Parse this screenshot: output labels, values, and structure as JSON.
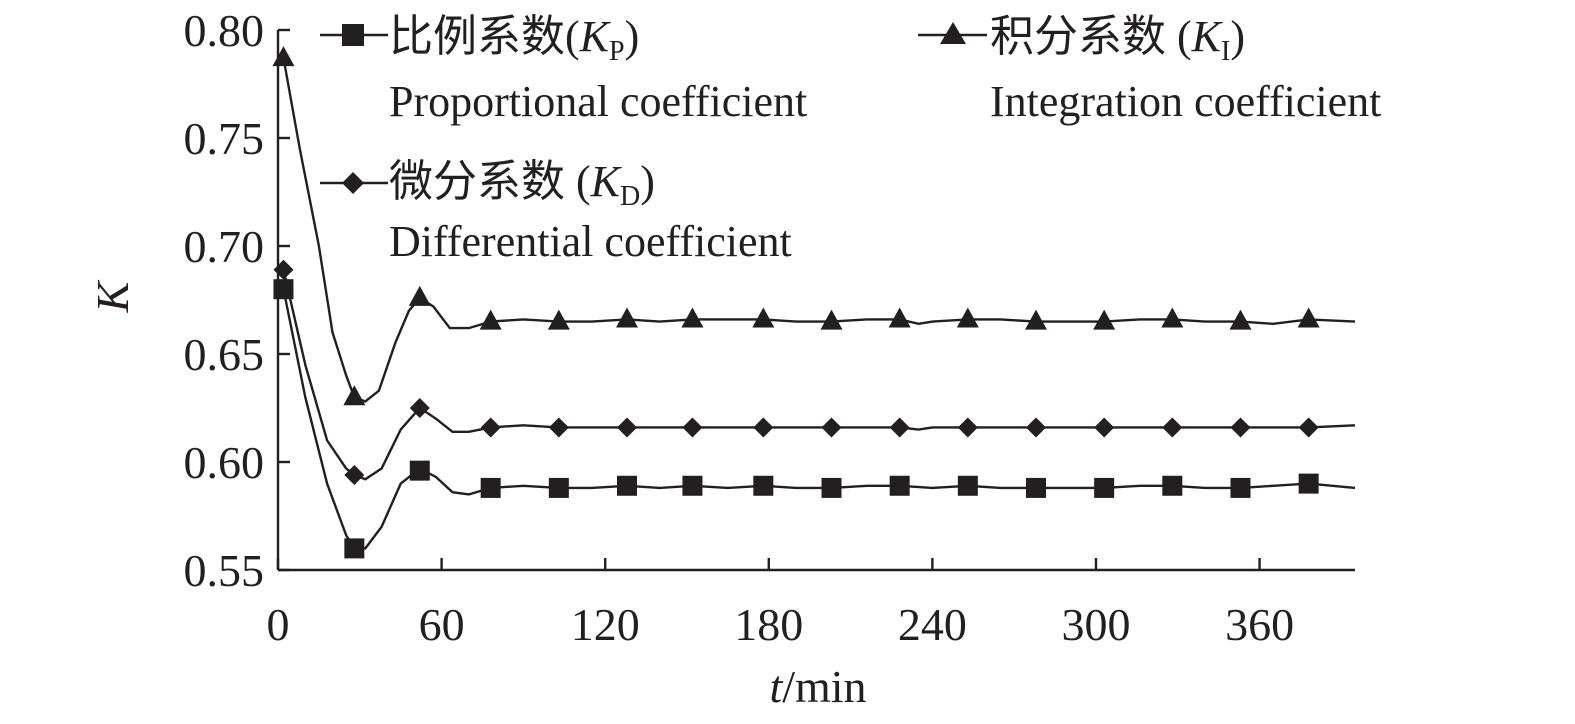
{
  "chart_data": {
    "type": "line",
    "xlabel": {
      "var": "t",
      "unit": "/min"
    },
    "ylabel": "K",
    "xlim": [
      0,
      395
    ],
    "ylim": [
      0.55,
      0.8
    ],
    "x_ticks": [
      0,
      60,
      120,
      180,
      240,
      300,
      360
    ],
    "y_ticks": [
      0.55,
      0.6,
      0.65,
      0.7,
      0.75,
      0.8
    ],
    "y_tick_labels": [
      "0.55",
      "0.60",
      "0.65",
      "0.70",
      "0.75",
      "0.80"
    ],
    "x_tick_labels": [
      "0",
      "60",
      "120",
      "180",
      "240",
      "300",
      "360"
    ],
    "grid": false,
    "legend_position": "top",
    "series": [
      {
        "key": "kp",
        "marker": "square",
        "legend_cn": "比例系数(",
        "legend_sym": "K",
        "legend_sub": "P",
        "legend_close": ")",
        "legend_en": "Proportional coefficient",
        "line": [
          [
            2,
            0.68
          ],
          [
            10,
            0.63
          ],
          [
            18,
            0.59
          ],
          [
            25,
            0.566
          ],
          [
            28,
            0.56
          ],
          [
            32,
            0.56
          ],
          [
            38,
            0.57
          ],
          [
            45,
            0.59
          ],
          [
            52,
            0.597
          ],
          [
            58,
            0.593
          ],
          [
            64,
            0.586
          ],
          [
            70,
            0.585
          ],
          [
            78,
            0.588
          ],
          [
            90,
            0.589
          ],
          [
            103,
            0.588
          ],
          [
            115,
            0.588
          ],
          [
            128,
            0.589
          ],
          [
            140,
            0.588
          ],
          [
            152,
            0.589
          ],
          [
            165,
            0.588
          ],
          [
            178,
            0.589
          ],
          [
            190,
            0.588
          ],
          [
            203,
            0.588
          ],
          [
            216,
            0.589
          ],
          [
            228,
            0.589
          ],
          [
            240,
            0.588
          ],
          [
            253,
            0.589
          ],
          [
            265,
            0.588
          ],
          [
            278,
            0.588
          ],
          [
            290,
            0.588
          ],
          [
            303,
            0.588
          ],
          [
            316,
            0.589
          ],
          [
            328,
            0.589
          ],
          [
            340,
            0.588
          ],
          [
            353,
            0.588
          ],
          [
            365,
            0.589
          ],
          [
            378,
            0.59
          ],
          [
            395,
            0.588
          ]
        ],
        "markers": [
          [
            2,
            0.68
          ],
          [
            28,
            0.56
          ],
          [
            52,
            0.596
          ],
          [
            78,
            0.588
          ],
          [
            103,
            0.588
          ],
          [
            128,
            0.589
          ],
          [
            152,
            0.589
          ],
          [
            178,
            0.589
          ],
          [
            203,
            0.588
          ],
          [
            228,
            0.589
          ],
          [
            253,
            0.589
          ],
          [
            278,
            0.588
          ],
          [
            303,
            0.588
          ],
          [
            328,
            0.589
          ],
          [
            353,
            0.588
          ],
          [
            378,
            0.59
          ]
        ]
      },
      {
        "key": "ki",
        "marker": "triangle",
        "legend_cn": "积分系数 (",
        "legend_sym": "K",
        "legend_sub": "I",
        "legend_close": ")",
        "legend_en": "Integration coefficient",
        "line": [
          [
            2,
            0.787
          ],
          [
            8,
            0.745
          ],
          [
            15,
            0.7
          ],
          [
            20,
            0.66
          ],
          [
            25,
            0.64
          ],
          [
            28,
            0.63
          ],
          [
            32,
            0.628
          ],
          [
            37,
            0.633
          ],
          [
            43,
            0.655
          ],
          [
            48,
            0.67
          ],
          [
            52,
            0.676
          ],
          [
            57,
            0.672
          ],
          [
            63,
            0.662
          ],
          [
            70,
            0.662
          ],
          [
            78,
            0.665
          ],
          [
            90,
            0.666
          ],
          [
            103,
            0.665
          ],
          [
            115,
            0.665
          ],
          [
            128,
            0.666
          ],
          [
            140,
            0.665
          ],
          [
            152,
            0.666
          ],
          [
            165,
            0.666
          ],
          [
            178,
            0.666
          ],
          [
            190,
            0.665
          ],
          [
            203,
            0.665
          ],
          [
            216,
            0.666
          ],
          [
            228,
            0.666
          ],
          [
            235,
            0.664
          ],
          [
            240,
            0.665
          ],
          [
            253,
            0.666
          ],
          [
            265,
            0.666
          ],
          [
            278,
            0.665
          ],
          [
            290,
            0.665
          ],
          [
            303,
            0.665
          ],
          [
            316,
            0.666
          ],
          [
            328,
            0.666
          ],
          [
            340,
            0.665
          ],
          [
            353,
            0.665
          ],
          [
            365,
            0.664
          ],
          [
            378,
            0.666
          ],
          [
            395,
            0.665
          ]
        ],
        "markers": [
          [
            2,
            0.787
          ],
          [
            28,
            0.63
          ],
          [
            52,
            0.676
          ],
          [
            78,
            0.665
          ],
          [
            103,
            0.665
          ],
          [
            128,
            0.666
          ],
          [
            152,
            0.666
          ],
          [
            178,
            0.666
          ],
          [
            203,
            0.665
          ],
          [
            228,
            0.666
          ],
          [
            253,
            0.666
          ],
          [
            278,
            0.665
          ],
          [
            303,
            0.665
          ],
          [
            328,
            0.666
          ],
          [
            353,
            0.665
          ],
          [
            378,
            0.666
          ]
        ]
      },
      {
        "key": "kd",
        "marker": "diamond",
        "legend_cn": "微分系数 (",
        "legend_sym": "K",
        "legend_sub": "D",
        "legend_close": ")",
        "legend_en": "Differential coefficient",
        "line": [
          [
            2,
            0.689
          ],
          [
            10,
            0.645
          ],
          [
            18,
            0.61
          ],
          [
            25,
            0.597
          ],
          [
            28,
            0.594
          ],
          [
            32,
            0.592
          ],
          [
            38,
            0.597
          ],
          [
            45,
            0.615
          ],
          [
            52,
            0.625
          ],
          [
            58,
            0.62
          ],
          [
            64,
            0.614
          ],
          [
            70,
            0.614
          ],
          [
            78,
            0.616
          ],
          [
            90,
            0.617
          ],
          [
            103,
            0.616
          ],
          [
            115,
            0.616
          ],
          [
            128,
            0.616
          ],
          [
            140,
            0.616
          ],
          [
            152,
            0.616
          ],
          [
            165,
            0.616
          ],
          [
            178,
            0.616
          ],
          [
            190,
            0.616
          ],
          [
            203,
            0.616
          ],
          [
            216,
            0.616
          ],
          [
            228,
            0.616
          ],
          [
            235,
            0.615
          ],
          [
            240,
            0.616
          ],
          [
            253,
            0.616
          ],
          [
            265,
            0.616
          ],
          [
            278,
            0.616
          ],
          [
            290,
            0.616
          ],
          [
            303,
            0.616
          ],
          [
            316,
            0.616
          ],
          [
            328,
            0.616
          ],
          [
            340,
            0.616
          ],
          [
            353,
            0.616
          ],
          [
            365,
            0.616
          ],
          [
            378,
            0.616
          ],
          [
            395,
            0.617
          ]
        ],
        "markers": [
          [
            2,
            0.689
          ],
          [
            28,
            0.594
          ],
          [
            52,
            0.625
          ],
          [
            78,
            0.616
          ],
          [
            103,
            0.616
          ],
          [
            128,
            0.616
          ],
          [
            152,
            0.616
          ],
          [
            178,
            0.616
          ],
          [
            203,
            0.616
          ],
          [
            228,
            0.616
          ],
          [
            253,
            0.616
          ],
          [
            278,
            0.616
          ],
          [
            303,
            0.616
          ],
          [
            328,
            0.616
          ],
          [
            353,
            0.616
          ],
          [
            378,
            0.616
          ]
        ]
      }
    ]
  }
}
